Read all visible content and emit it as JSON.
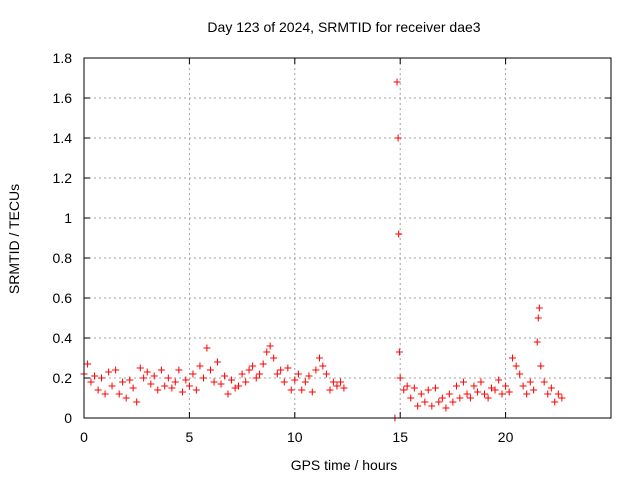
{
  "chart_data": {
    "type": "scatter",
    "title": "Day 123 of 2024, SRMTID for receiver dae3",
    "xlabel": "GPS time / hours",
    "ylabel": "SRMTID / TECUs",
    "xlim": [
      0,
      25
    ],
    "ylim": [
      0,
      1.8
    ],
    "xticks": [
      0,
      5,
      10,
      15,
      20
    ],
    "xtick_labels": [
      "0",
      "5",
      "10",
      "15",
      "20"
    ],
    "yticks": [
      0,
      0.2,
      0.4,
      0.6,
      0.8,
      1,
      1.2,
      1.4,
      1.6,
      1.8
    ],
    "ytick_labels": [
      "0",
      "0.2",
      "0.4",
      "0.6",
      "0.8",
      "1",
      "1.2",
      "1.4",
      "1.6",
      "1.8"
    ],
    "grid": true,
    "marker": "+",
    "series": [
      {
        "name": "SRMTID",
        "color": "#ff0000",
        "x": [
          0.0,
          0.17,
          0.33,
          0.5,
          0.67,
          0.83,
          1.0,
          1.17,
          1.33,
          1.5,
          1.67,
          1.83,
          2.0,
          2.17,
          2.33,
          2.5,
          2.67,
          2.83,
          3.0,
          3.17,
          3.33,
          3.5,
          3.67,
          3.83,
          4.0,
          4.17,
          4.33,
          4.5,
          4.67,
          4.83,
          5.0,
          5.17,
          5.33,
          5.5,
          5.67,
          5.83,
          6.0,
          6.17,
          6.33,
          6.5,
          6.67,
          6.83,
          7.0,
          7.17,
          7.33,
          7.5,
          7.67,
          7.83,
          8.0,
          8.17,
          8.33,
          8.5,
          8.67,
          8.83,
          9.0,
          9.17,
          9.33,
          9.5,
          9.67,
          9.83,
          10.0,
          10.17,
          10.33,
          10.5,
          10.67,
          10.83,
          11.0,
          11.17,
          11.33,
          11.5,
          11.67,
          11.83,
          12.0,
          12.17,
          12.33,
          14.75,
          14.85,
          14.9,
          14.93,
          14.96,
          15.0,
          15.17,
          15.33,
          15.5,
          15.67,
          15.83,
          16.0,
          16.17,
          16.33,
          16.5,
          16.67,
          16.83,
          17.0,
          17.17,
          17.33,
          17.5,
          17.67,
          17.83,
          18.0,
          18.17,
          18.33,
          18.5,
          18.67,
          18.83,
          19.0,
          19.17,
          19.33,
          19.5,
          19.67,
          19.83,
          20.0,
          20.17,
          20.33,
          20.5,
          20.67,
          20.83,
          21.0,
          21.17,
          21.33,
          21.5,
          21.55,
          21.6,
          21.67,
          21.83,
          22.0,
          22.17,
          22.33,
          22.5,
          22.67
        ],
        "y": [
          0.22,
          0.27,
          0.18,
          0.21,
          0.14,
          0.2,
          0.12,
          0.23,
          0.16,
          0.24,
          0.12,
          0.18,
          0.1,
          0.19,
          0.15,
          0.08,
          0.25,
          0.2,
          0.23,
          0.17,
          0.21,
          0.14,
          0.24,
          0.16,
          0.2,
          0.15,
          0.18,
          0.24,
          0.13,
          0.19,
          0.16,
          0.22,
          0.14,
          0.26,
          0.2,
          0.35,
          0.24,
          0.18,
          0.28,
          0.17,
          0.21,
          0.12,
          0.19,
          0.15,
          0.16,
          0.22,
          0.18,
          0.24,
          0.26,
          0.2,
          0.22,
          0.27,
          0.33,
          0.36,
          0.3,
          0.22,
          0.24,
          0.18,
          0.25,
          0.14,
          0.19,
          0.22,
          0.14,
          0.18,
          0.21,
          0.13,
          0.24,
          0.3,
          0.26,
          0.22,
          0.14,
          0.18,
          0.16,
          0.18,
          0.15,
          0.0,
          1.68,
          1.4,
          0.92,
          0.33,
          0.2,
          0.14,
          0.16,
          0.1,
          0.15,
          0.06,
          0.12,
          0.08,
          0.14,
          0.06,
          0.15,
          0.08,
          0.1,
          0.05,
          0.12,
          0.08,
          0.16,
          0.1,
          0.18,
          0.12,
          0.1,
          0.16,
          0.13,
          0.18,
          0.12,
          0.1,
          0.15,
          0.14,
          0.19,
          0.12,
          0.16,
          0.13,
          0.3,
          0.26,
          0.22,
          0.16,
          0.12,
          0.18,
          0.14,
          0.38,
          0.5,
          0.55,
          0.26,
          0.18,
          0.12,
          0.15,
          0.08,
          0.12,
          0.1
        ]
      }
    ]
  }
}
